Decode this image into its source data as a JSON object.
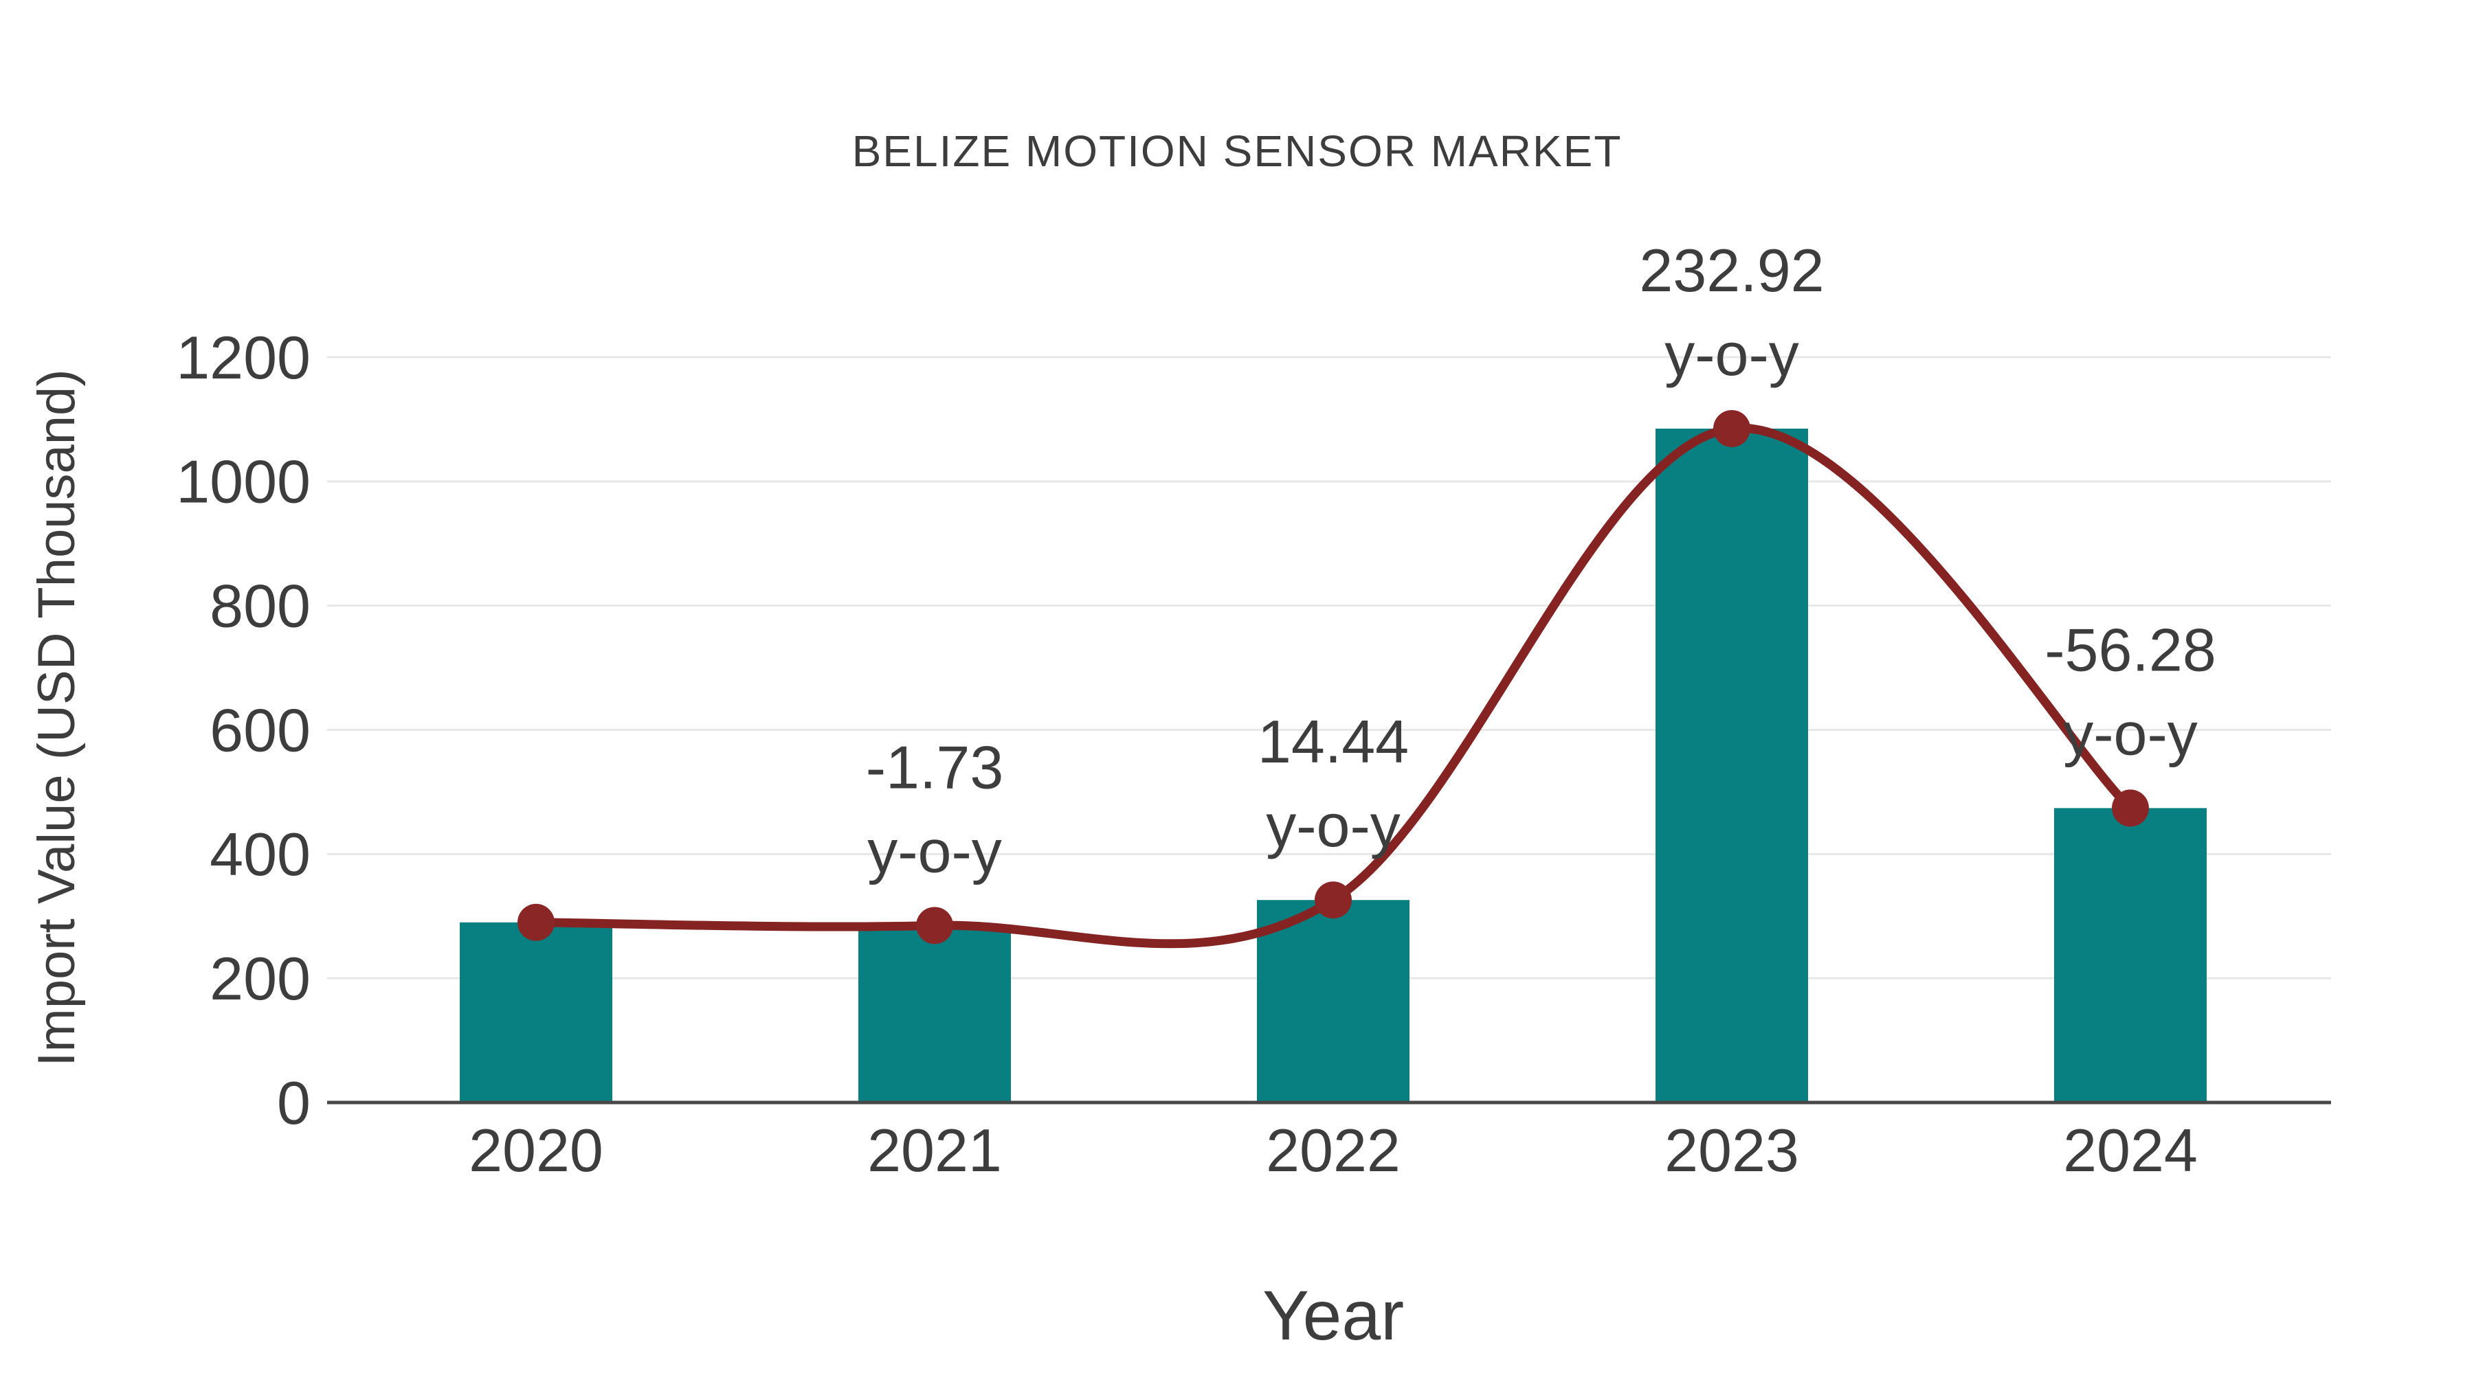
{
  "chart_data": {
    "type": "bar",
    "title": "BELIZE MOTION SENSOR MARKET",
    "xlabel": "Year",
    "ylabel": "Import Value (USD Thousand)",
    "categories": [
      "2020",
      "2021",
      "2022",
      "2023",
      "2024"
    ],
    "series": [
      {
        "name": "Import Value bars",
        "type": "bar",
        "values": [
          290,
          285,
          326,
          1085,
          474
        ]
      },
      {
        "name": "Import Value trend",
        "type": "line",
        "values": [
          290,
          285,
          326,
          1085,
          474
        ]
      }
    ],
    "annotations": [
      {
        "category": "2021",
        "line1": "-1.73",
        "line2": "y-o-y"
      },
      {
        "category": "2022",
        "line1": "14.44",
        "line2": "y-o-y"
      },
      {
        "category": "2023",
        "line1": "232.92",
        "line2": "y-o-y"
      },
      {
        "category": "2024",
        "line1": "-56.28",
        "line2": "y-o-y"
      }
    ],
    "yticks": [
      0,
      200,
      400,
      600,
      800,
      1000,
      1200
    ],
    "ylim": [
      0,
      1200
    ],
    "grid": true,
    "legend": "none",
    "colors": {
      "bar": "#088081",
      "line": "#852323",
      "marker": "#8b2626",
      "grid": "#e8e8e8",
      "axis_line": "#474747",
      "text": "#3d3d3d",
      "background": "#ffffff"
    }
  }
}
